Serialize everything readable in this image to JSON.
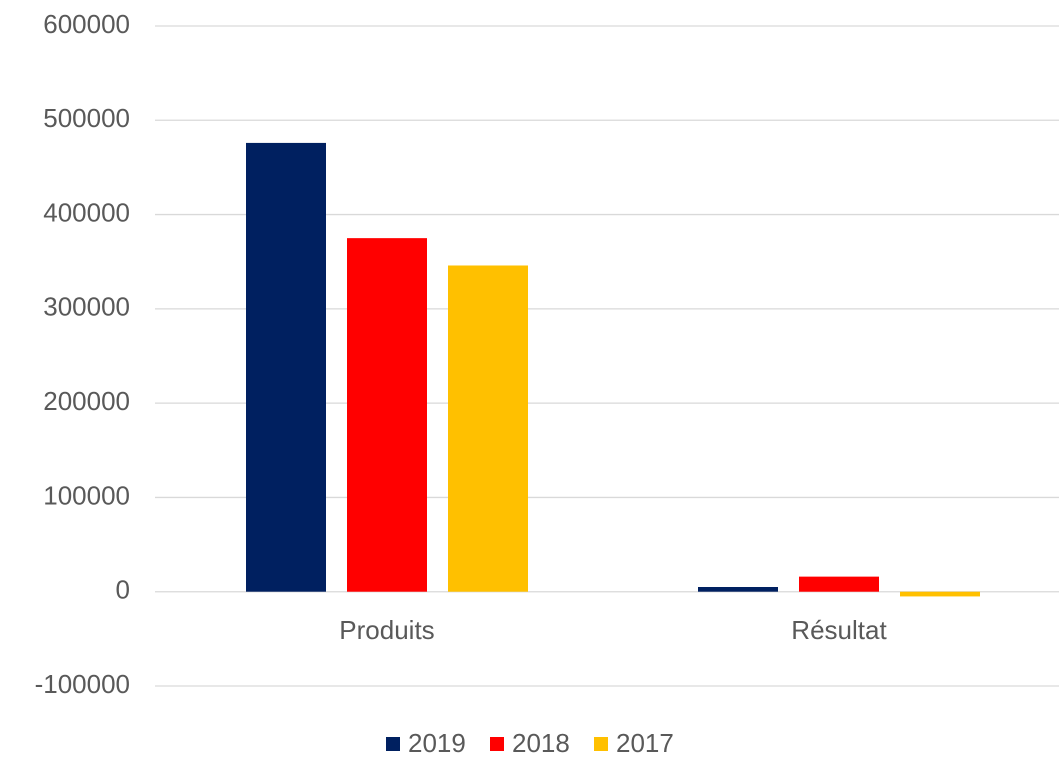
{
  "chart_data": {
    "type": "bar",
    "categories": [
      "Produits",
      "Résultat"
    ],
    "series": [
      {
        "name": "2019",
        "color": "#002060",
        "values": [
          476000,
          5000
        ]
      },
      {
        "name": "2018",
        "color": "#ff0000",
        "values": [
          375000,
          16000
        ]
      },
      {
        "name": "2017",
        "color": "#ffc000",
        "values": [
          346000,
          -5000
        ]
      }
    ],
    "ylim": [
      -100000,
      600000
    ],
    "yticks": [
      -100000,
      0,
      100000,
      200000,
      300000,
      400000,
      500000,
      600000
    ],
    "grid": true,
    "legend": "bottom"
  }
}
